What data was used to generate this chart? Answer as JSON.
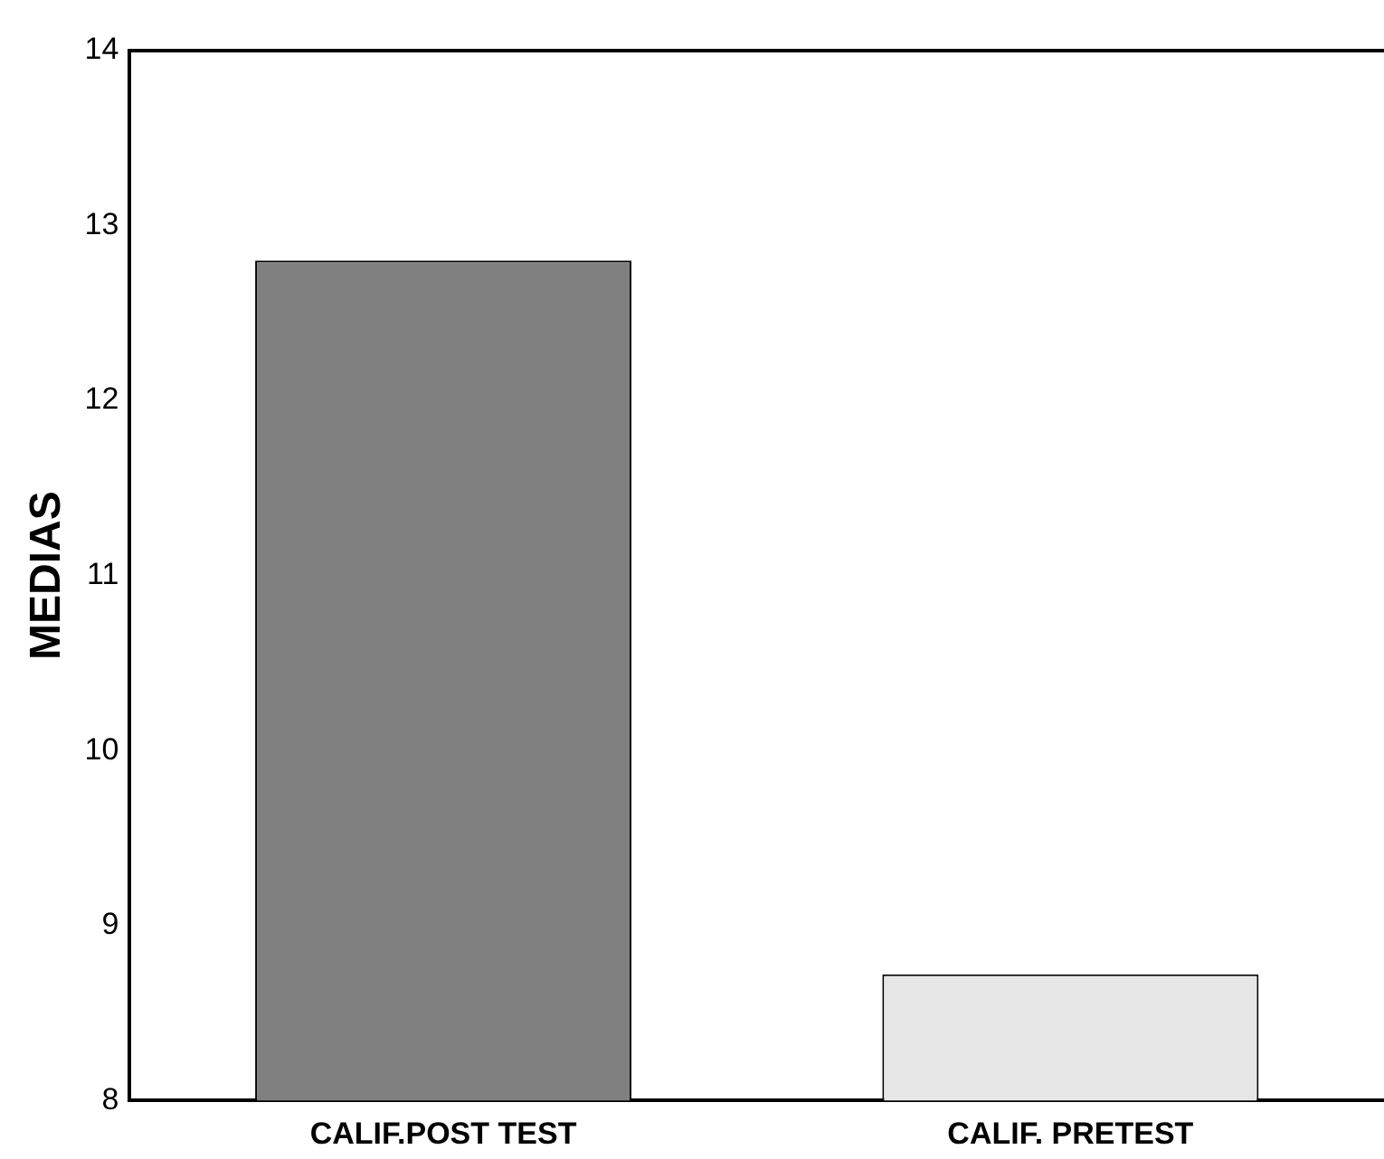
{
  "chart_data": {
    "type": "bar",
    "ylabel": "MEDIAS",
    "categories": [
      "CALIF.POST TEST",
      "CALIF. PRETEST"
    ],
    "values": [
      12.8,
      8.72
    ],
    "colors": [
      "#808080",
      "#e6e6e6"
    ],
    "ylim": [
      8,
      14
    ],
    "yticks": [
      8,
      9,
      10,
      11,
      12,
      13,
      14
    ],
    "grid": false,
    "legend": false
  }
}
